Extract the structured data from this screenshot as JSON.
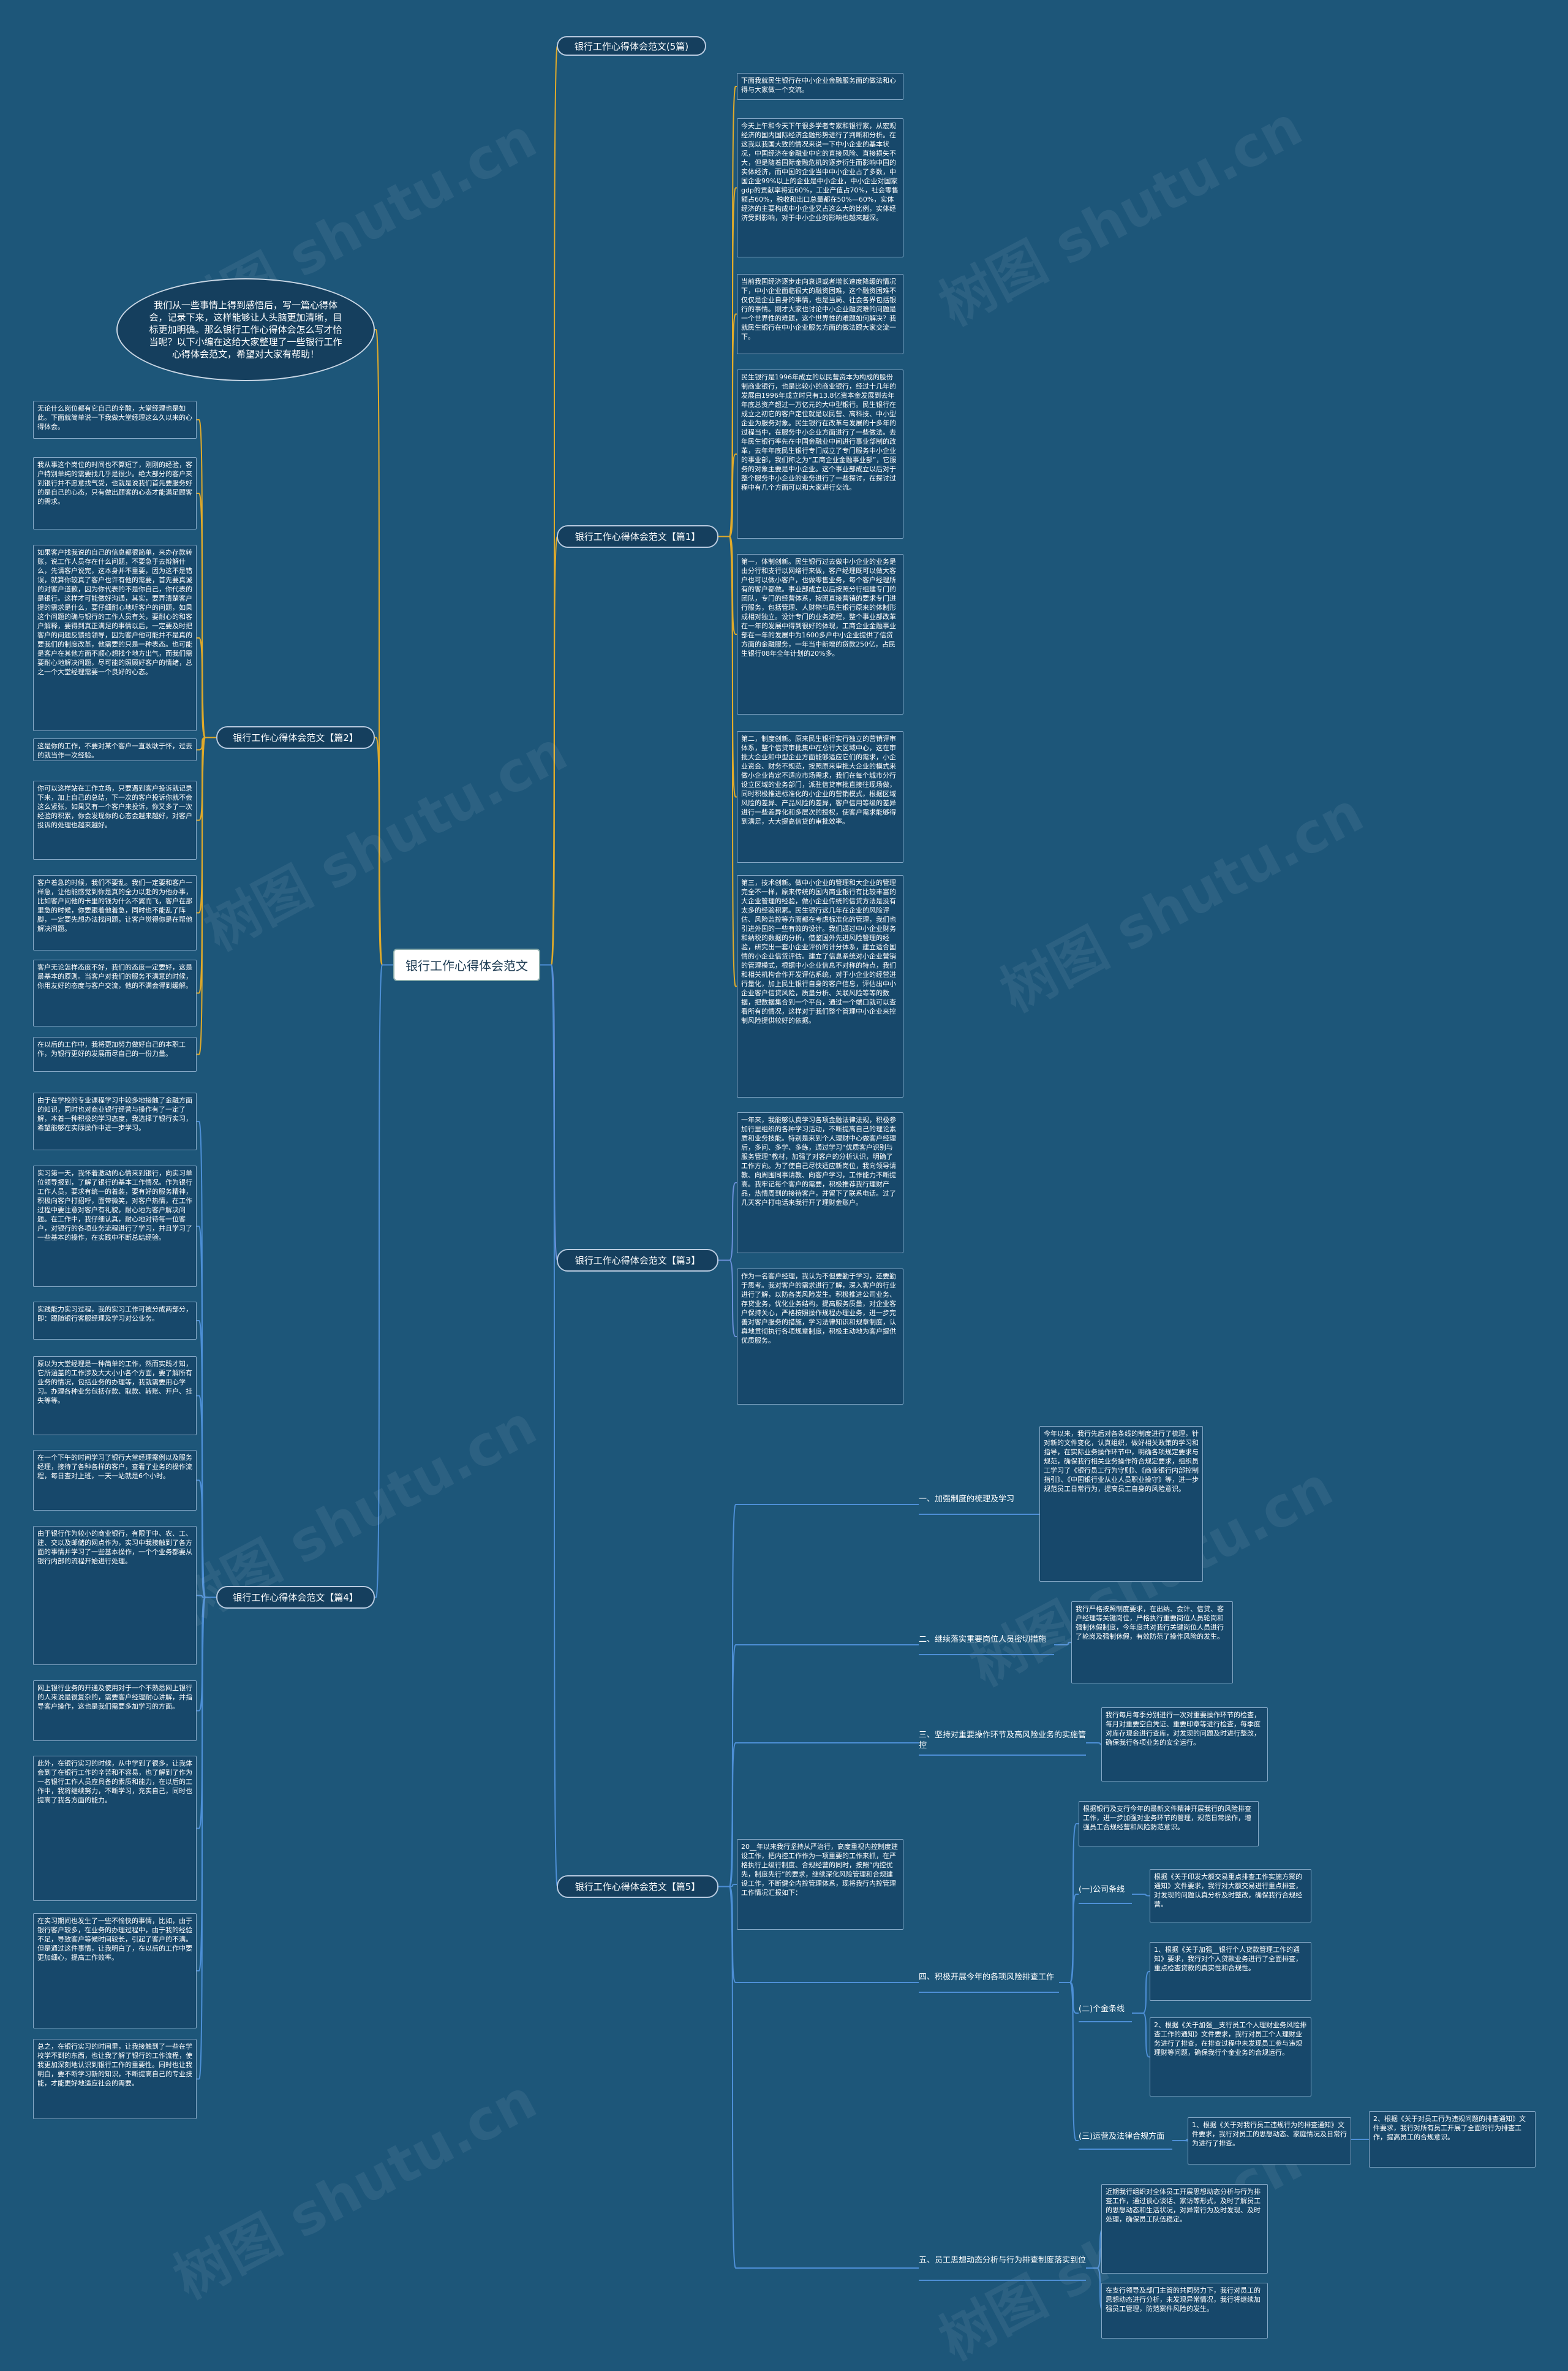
{
  "center": "银行工作心得体会范文",
  "watermark": "树图 shutu.cn",
  "intro": "我们从一些事情上得到感悟后，写一篇心得体会，记录下来，这样能够让人头脑更加清晰，目标更加明确。那么银行工作心得体会怎么写才恰当呢？以下小编在这给大家整理了一些银行工作心得体会范文，希望对大家有帮助！",
  "sections": [
    {
      "title": "银行工作心得体会范文(5篇)"
    },
    {
      "title": "银行工作心得体会范文【篇1】",
      "paragraphs": [
        "下面我就民生银行在中小企业金融服务面的做法和心得与大家做一个交流。",
        "今天上午和今天下午很多学者专家和银行家，从宏观经济的国内国际经济金融形势进行了判断和分析。在这我以我国大致的情况来说一下中小企业的基本状况，中国经济在金融业中它的直接风险、直接损失不大，但是随着国际金融危机的逐步衍生而影响中国的实体经济，而中国的企业当中中小企业占了多数，中国企业99%以上的企业是中小企业，中小企业对国家gdp的贡献率将近60%，工业产值占70%，社会零售额占60%，税收和出口总量都在50%—60%，实体经济的主要构成中小企业又占这么大的比例，实体经济受到影响，对于中小企业的影响也越来越深。",
        "当前我国经济逐步走向衰退或者增长速度降缓的情况下，中小企业面临很大的融资困难，这个融资困难不仅仅是企业自身的事情，也是当局、社会各界包括银行的事情。刚才大家也讨论中小企业融资难的问题是一个世界性的难题，这个世界性的难题如何解决？我就民生银行在中小企业服务方面的做法跟大家交流一下。",
        "民生银行是1996年成立的以民营资本为构成的股份制商业银行，也是比较小的商业银行，经过十几年的发展由1996年成立时只有13.8亿资本金发展到去年年底总资产超过一万亿元的大中型银行。民生银行在成立之初它的客户定位就是以民营、高科技、中小型企业为服务对象。民生银行在改革与发展的十多年的过程当中，在服务中小企业方面进行了一些做法。去年民生银行率先在中国金融业中间进行事业部制的改革，去年年底民生银行专门成立了专门服务中小企业的事业部，我们称之为“工商企业金融事业部”，它服务的对象主要是中小企业。这个事业部成立以后对于整个服务中小企业的业务进行了一些探讨，在探讨过程中有几个方面可以和大家进行交流。",
        "第一，体制创新。民生银行过去做中小企业的业务是由分行和支行以网络行来做，客户经理既可以做大客户也可以做小客户，也做零售业务，每个客户经理所有的客户都做。事业部成立以后按照分行组建专门的团队，专门的经营体系，按照直接营销的要求专门进行服务，包括管理、人财物与民生银行原来的体制形成相对独立。设计专门的业务流程，整个事业部改革在一年的发展中得到很好的体现，工商企业金融事业部在一年的发展中为1600多户中小企业提供了信贷方面的金融服务，一年当中新增的贷款250亿，占民生银行08年全年计划的20%多。",
        "第二，制度创新。原来民生银行实行独立的营销评审体系，整个信贷审批集中在总行大区域中心，这在审批大企业和中型企业方面能够适应它们的需求，小企业资金、财务不规范，按照原来审批大企业的模式来做小企业肯定不适应市场需求，我们在每个城市分行设立区域的业务部门，派驻信贷审批直接往现场做，同时积极推进标准化的小企业的营销模式，根据区域风险的差异、产品风险的差异，客户信用等级的差异进行一些差异化和多层次的授权，使客户需求能够得到满足，大大提高信贷的审批效率。",
        "第三，技术创新。做中小企业的管理和大企业的管理完全不一样，原来传统的国内商业银行有比较丰富的大企业管理的经验，做小企业传统的信贷方法是没有太多的经验积累。民生银行这几年在企业的风险评估、风险监控等方面都在考虑标准化的管理，我们也引进外国的一些有效的设计。我们通过中小企业财务和纳税的数据的分析，借鉴国外先进风险管理的经验，研究出一套小企业评价的计分体系，建立适合国情的小企业信贷评估。建立了信息系统对小企业营销的管理模式，根据中小企业信息不对称的特点，我们和相关机构合作开发评估系统，对于小企业的经营进行量化，加上民生银行自身的客户信息，评估出中小企业客户信贷风险，质量分析、关联风险等等的数据，把数据集合到一个平台，通过一个端口就可以查看所有的情况，这样对于我们整个管理中小企业来控制风险提供较好的依据。"
      ]
    },
    {
      "title": "银行工作心得体会范文【篇2】",
      "paragraphs": [
        "无论什么岗位都有它自己的辛酸，大堂经理也是如此。下面就简单说一下我做大堂经理这么久以来的心得体会。",
        "我从事这个岗位的时间也不算短了，刚刚的经验，客户特别单纯的需要找几乎是很少。绝大部分的客户来到银行并不愿意找气受，也就是说我们首先要服务好的是自己的心态，只有做出顾客的心态才能满足顾客的需求。",
        "如果客户找我说的自己的信息都很简单，来办存款转账，说工作人员存在什么问题，不要急于去辩解什么，先请客户说完，这本身并不重要，因为这不是错误，就算你较真了客户也许有他的需要，首先要真诚的对客户道歉，因为你代表的不是你自己，你代表的是银行。这样才可能做好沟通，其实，要弄清楚客户提的需求是什么，要仔细耐心地听客户的问题，如果这个问题的确与银行的工作人员有关，要耐心的和客户解释，要得到真正满足的事情以后，一定要及时把客户的问题反馈给领导，因为客户他可能并不是真的要我们的制度改革，他需要的只是一种表态。也可能是客户在其他方面不顺心想找个地方出气，而我们需要耐心地解决问题，尽可能的照顾好客户的情绪，总之一个大堂经理需要一个良好的心态。",
        "这是你的工作，不要对某个客户一直耿耿于怀，过去的就当作一次经验。",
        "你可以这样站在工作立场，只要遇到客户投诉就记录下来，加上自己的总结，下一次的客户投诉你就不会这么紧张，如果又有一个客户来投诉，你又多了一次经验的积累，你会发现你的心态会越来越好，对客户投诉的处理也越来越好。",
        "客户着急的时候，我们不要乱。我们一定要和客户一样急，让他能感觉到你是真的全力以赴的为他办事，比如客户问他的卡里的钱为什么不翼而飞，客户在那里急的时候，你要跟着他着急，同时也不能乱了阵脚，一定要先想办法找问题，让客户觉得你是在帮他解决问题。",
        "客户无论怎样态度不好，我们的态度一定要好，这是最基本的原则。当客户对我们的服务不满意的时候，你用友好的态度与客户交流，他的不满会得到缓解。",
        "在以后的工作中，我将更加努力做好自己的本职工作，为银行更好的发展而尽自己的一份力量。"
      ]
    },
    {
      "title": "银行工作心得体会范文【篇3】",
      "paragraphs": [
        "一年来，我能够认真学习各项金融法律法规，积极参加行里组织的各种学习活动，不断提高自己的理论素质和业务技能。特别是来到个人理财中心做客户经理后，多问、多学、多练，通过学习“优质客户识别与服务管理”教材，加强了对客户的分析认识，明确了工作方向。为了使自己尽快适应新岗位，我向领导请教、向周围同事请教、向客户学习，工作能力不断提高。我牢记每个客户的需要，积极推荐我行理财产品，热情周到的接待客户，并留下了联系电话。过了几天客户打电话来我行开了理财金账户。",
        "作为一名客户经理，我认为不但要勤于学习，还要勤于思考。我对客户的需求进行了解，深入客户的行业进行了解，以防各类风险发生。积极推进公司业务、存贷业务，优化业务结构，提高服务质量，对企业客户保持关心，严格按照操作规程办理业务，进一步完善对客户服务的措施，学习法律知识和规章制度，认真地贯彻执行各项规章制度，积极主动地为客户提供优质服务。"
      ]
    },
    {
      "title": "银行工作心得体会范文【篇4】",
      "paragraphs": [
        "由于在学校的专业课程学习中较多地接触了金融方面的知识，同时也对商业银行经营与操作有了一定了解，本着一种积极的学习态度，我选择了银行实习，希望能够在实际操作中进一步学习。",
        "实习第一天，我怀着激动的心情来到银行，向实习单位领导报到，了解了银行的基本工作情况。作为银行工作人员，要求有统一的着装，要有好的服务精神，积极向客户打招呼，面带微笑，对客户热情，在工作过程中要注意对客户有礼貌，耐心地为客户解决问题。在工作中，我仔细认真，耐心地对待每一位客户，对银行的各项业务流程进行了学习，并且学习了一些基本的操作，在实践中不断总结经验。",
        "实践能力实习过程，我的实习工作可被分成两部分，即：跟随银行客服经理及学习对公业务。",
        "原以为大堂经理是一种简单的工作，然而实践才知，它所涵盖的工作涉及大大小小各个方面，要了解所有业务的情况，包括业务的办理等，我就需要用心学习。办理各种业务包括存款、取款、转账、开户、挂失等等。",
        "在一个下午的时间学习了银行大堂经理案例以及服务经理，接待了各种各样的客户，查看了业务的操作流程，每日查对上班，一天一站就是6个小时。",
        "由于银行作为较小的商业银行，有限于中、农、工、建、交以及邮储的网点作为，实习中我接触到了各方面的事情并学习了一些基本操作，一个个业务都要从银行内部的流程开始进行处理。",
        "网上银行业务的开通及使用对于一个不熟悉网上银行的人来说是很复杂的，需要客户经理耐心讲解，并指导客户操作，这也是我们需要多加学习的方面。",
        "此外，在银行实习的时候，从中学到了很多，让我体会到了在银行工作的辛苦和不容易，也了解到了作为一名银行工作人员应具备的素质和能力，在以后的工作中，我将继续努力，不断学习，充实自己，同时也提高了我各方面的能力。",
        "在实习期间也发生了一些不愉快的事情，比如，由于银行客户较多，在业务的办理过程中，由于我的经验不足，导致客户等候时间较长，引起了客户的不满。但是通过这件事情，让我明白了，在以后的工作中要更加细心，提高工作效率。",
        "总之，在银行实习的时间里，让我接触到了一些在学校学不到的东西，也让我了解了银行的工作流程，使我更加深刻地认识到银行工作的重要性。同时也让我明白，要不断学习新的知识，不断提高自己的专业技能，才能更好地适应社会的需要。"
      ]
    },
    {
      "title": "银行工作心得体会范文【篇5】",
      "intro": "20__年以来我行坚持从严治行，高度重视内控制度建设工作，把内控工作作为一项重要的工作来抓，在严格执行上级行制度、合规经营的同时，按照“内控优先，制度先行”的要求，继续深化风险管理和合规建设工作，不断健全内控管理体系，现将我行内控管理工作情况汇报如下：",
      "items": [
        {
          "title": "一、加强制度的梳理及学习",
          "paragraphs": [
            "今年以来，我行先后对各条线的制度进行了梳理，针对新的文件变化，认真组织，做好相关政策的学习和指导，在实际业务操作环节中，明确各项规定要求与规范，确保我行相关业务操作符合规定要求，组织员工学习了《银行员工行为守则》、《商业银行内部控制指引》、《中国银行业从业人员职业操守》等，进一步规范员工日常行为，提高员工自身的风险意识。"
          ]
        },
        {
          "title": "二、继续落实重要岗位人员密切措施",
          "paragraphs": [
            "我行严格按照制度要求，在出纳、会计、信贷、客户经理等关键岗位，严格执行重要岗位人员轮岗和强制休假制度，今年度共对我行关键岗位人员进行了轮岗及强制休假，有效防范了操作风险的发生。"
          ]
        },
        {
          "title": "三、坚持对重要操作环节及高风险业务的实施管控",
          "paragraphs": [
            "我行每月每季分别进行一次对重要操作环节的检查，每月对重要空白凭证、重要印章等进行检查，每季度对库存现金进行查库，对发现的问题及时进行整改，确保我行各项业务的安全运行。"
          ]
        },
        {
          "title": "四、积极开展今年的各项风险排查工作",
          "paragraphs": [
            "根据银行及支行今年的最新文件精神开展我行的风险排查工作，进一步加强对业务环节的管理，规范日常操作，增强员工合规经营和风险防范意识。"
          ],
          "groups": [
            {
              "title": "(一)公司条线",
              "paragraphs": [
                "根据《关于印发大额交易重点排查工作实施方案的通知》文件要求，我行对大额交易进行重点排查，对发现的问题认真分析及时整改，确保我行合规经营。"
              ]
            },
            {
              "title": "(二)个金条线",
              "paragraphs": [
                "1、根据《关于加强__银行个人贷款管理工作的通知》要求，我行对个人贷款业务进行了全面排查，重点检查贷款的真实性和合规性。",
                "2、根据《关于加强__支行员工个人理财业务风险排查工作的通知》文件要求，我行对员工个人理财业务进行了排查，在排查过程中未发现员工参与违规理财等问题，确保我行个金业务的合规运行。"
              ]
            },
            {
              "title": "(三)运营及法律合规方面",
              "paragraphs": [
                "1、根据《关于对我行员工违规行为的排查通知》文件要求，我行对员工的思想动态、家庭情况及日常行为进行了排查。",
                "2、根据《关于对员工行为违规问题的排查通知》文件要求，我行对所有员工开展了全面的行为排查工作，提高员工的合规意识。"
              ]
            }
          ]
        },
        {
          "title": "五、员工思想动态分析与行为排查制度落实到位",
          "paragraphs": [
            "近期我行组织对全体员工开展思想动态分析与行为排查工作，通过谈心谈话、家访等形式，及时了解员工的思想动态和生活状况，对异常行为及时发现、及时处理，确保员工队伍稳定。",
            "在支行领导及部门主管的共同努力下，我行对员工的思想动态进行分析，未发现异常情况，我行将继续加强员工管理，防范案件风险的发生。"
          ]
        }
      ]
    }
  ]
}
